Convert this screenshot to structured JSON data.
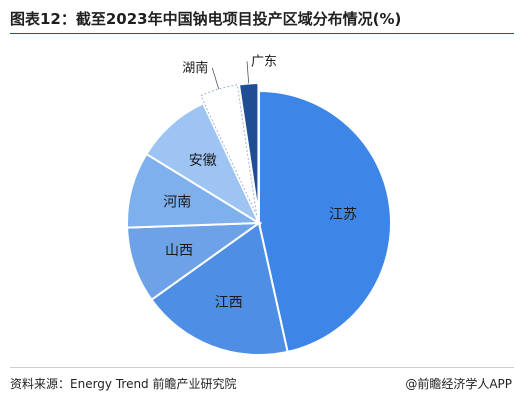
{
  "header": {
    "title": "图表12：截至2023年中国钠电项目投产区域分布情况(%)"
  },
  "footer": {
    "source": "资料来源：Energy Trend 前瞻产业研究院",
    "credit": "@前瞻经济学人APP"
  },
  "chart_data": {
    "type": "pie",
    "title": "图表12：截至2023年中国钠电项目投产区域分布情况(%)",
    "slices": [
      {
        "label": "江苏",
        "value": 45.5,
        "color": "#3d86e8"
      },
      {
        "label": "江西",
        "value": 18.2,
        "color": "#4f8ee5"
      },
      {
        "label": "山西",
        "value": 9.1,
        "color": "#6da1e8"
      },
      {
        "label": "河南",
        "value": 9.1,
        "color": "#7fb0ee"
      },
      {
        "label": "安徽",
        "value": 9.1,
        "color": "#9dc4f3"
      },
      {
        "label": "湖南",
        "value": 4.5,
        "color": "#ffffff"
      },
      {
        "label": "广东",
        "value": 2.3,
        "color": "#1f4e93"
      }
    ],
    "start_angle_deg": 0,
    "direction": "clockwise",
    "legend": "none"
  }
}
